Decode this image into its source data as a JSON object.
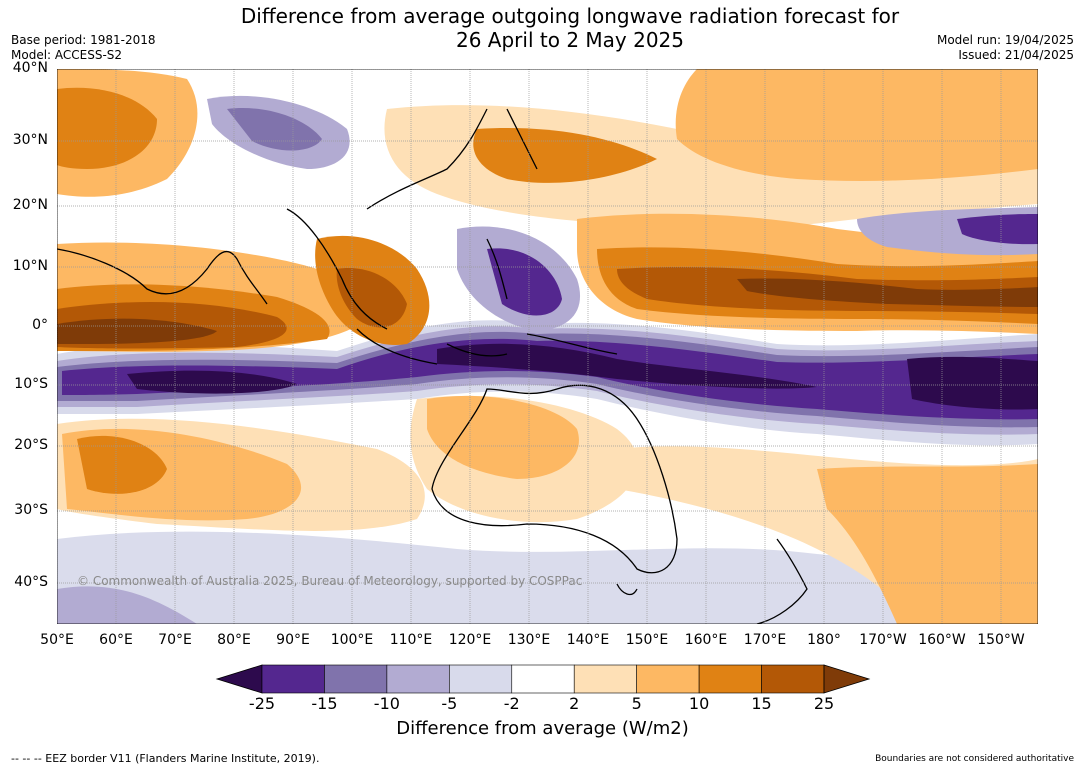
{
  "title_line1": "Difference from average outgoing longwave radiation forecast for",
  "title_line2": "26 April to 2 May 2025",
  "base_period": "Base period: 1981-2018",
  "model": "Model: ACCESS-S2",
  "model_run": "Model run: 19/04/2025",
  "issued": "Issued: 21/04/2025",
  "lat_labels": [
    "40°N",
    "30°N",
    "20°N",
    "10°N",
    "0°",
    "10°S",
    "20°S",
    "30°S",
    "40°S"
  ],
  "lon_labels": [
    "50°E",
    "60°E",
    "70°E",
    "80°E",
    "90°E",
    "100°E",
    "110°E",
    "120°E",
    "130°E",
    "140°E",
    "150°E",
    "160°E",
    "170°E",
    "180°",
    "170°W",
    "160°W",
    "150°W"
  ],
  "copyright": "© Commonwealth of Australia 2025, Bureau of Meteorology, supported by COSPPac",
  "colorbar": {
    "ticks": [
      "-25",
      "-15",
      "-10",
      "-5",
      "-2",
      "2",
      "5",
      "10",
      "15",
      "25"
    ],
    "colors": [
      "#2d0a4d",
      "#54278f",
      "#8073ac",
      "#b2abd2",
      "#d8daeb",
      "#ffffff",
      "#fee0b6",
      "#fdb863",
      "#e08214",
      "#b35806",
      "#7f3b08"
    ],
    "label": "Difference from average (W/m2)"
  },
  "footer_left": "--  --  -- EEZ border V11 (Flanders Marine Institute, 2019).",
  "footer_right": "Boundaries are not considered authoritative"
}
